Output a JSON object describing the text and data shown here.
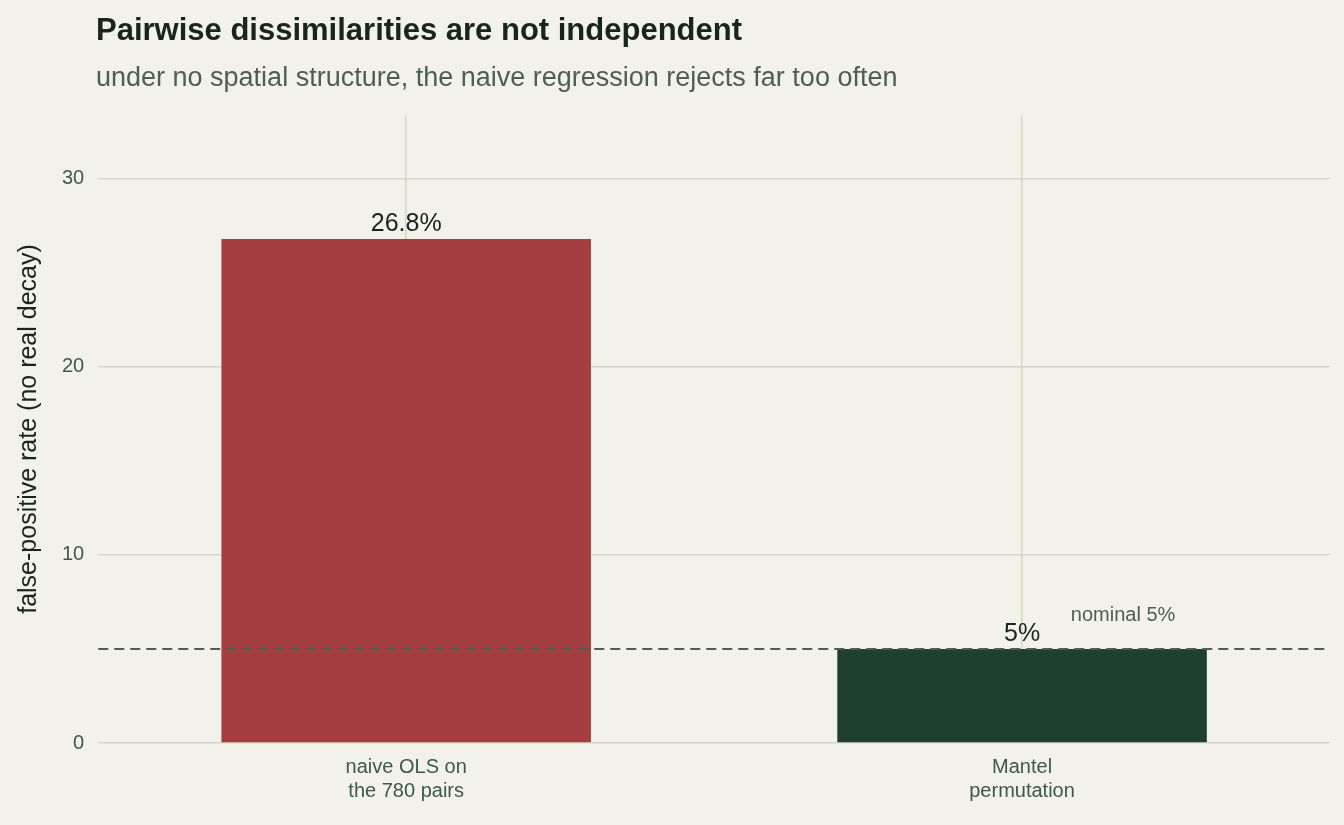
{
  "chart_data": {
    "type": "bar",
    "title": "Pairwise dissimilarities are not independent",
    "subtitle": "under no spatial structure, the naive regression rejects far too often",
    "ylabel": "false-positive rate (no real decay)",
    "categories": [
      "naive OLS on\nthe 780 pairs",
      "Mantel\npermutation"
    ],
    "values": [
      26.8,
      5
    ],
    "colors": [
      "#a33f3e",
      "#1f3f2d"
    ],
    "value_labels": [
      "26.8%",
      "5%"
    ],
    "ylim": [
      0,
      33.4
    ],
    "yticks": [
      0,
      10,
      20,
      30
    ],
    "grid": true,
    "ref_lines": [
      {
        "axis": "y",
        "value": 5,
        "label": "nominal 5%",
        "color": "#4f5e55",
        "line_style": "dashed"
      }
    ]
  }
}
